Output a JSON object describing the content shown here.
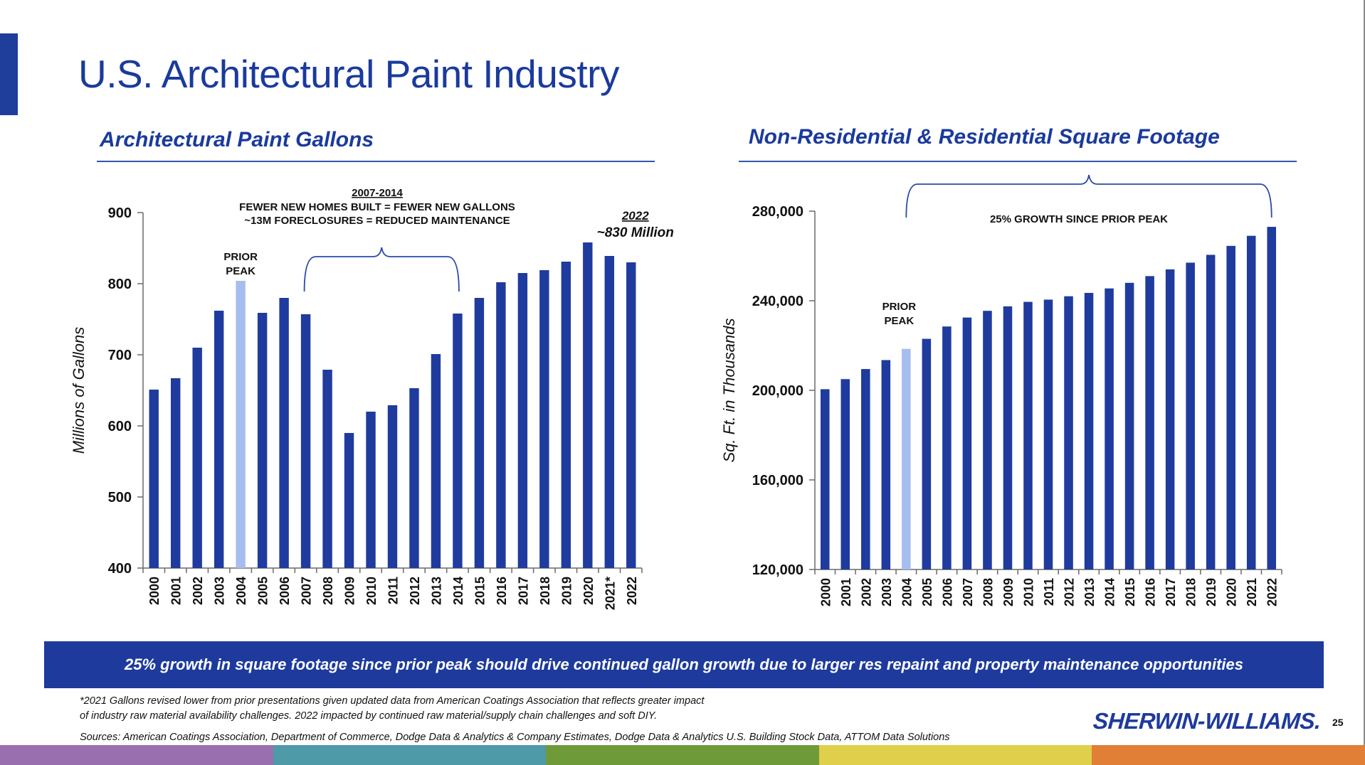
{
  "slide": {
    "title": "U.S. Architectural Paint Industry",
    "page_number": "25",
    "banner": "25% growth in square footage since prior peak should drive continued gallon growth due to larger res repaint and property maintenance opportunities",
    "footnote_line1": "*2021 Gallons revised lower from prior presentations given updated data from American Coatings Association that reflects greater impact",
    "footnote_line2": "of industry raw material availability challenges. 2022 impacted by continued raw material/supply chain challenges and soft DIY.",
    "sources": "Sources:  American Coatings Association, Department of Commerce, Dodge Data & Analytics & Company Estimates, Dodge Data & Analytics U.S. Building Stock Data, ATTOM Data Solutions",
    "logo_text": "SHERWIN-WILLIAMS.",
    "stripe_colors": [
      "#9a6fb0",
      "#4f9aa8",
      "#6f9a3a",
      "#e0cf4a",
      "#e07f35"
    ]
  },
  "colors": {
    "bar": "#1f3b9e",
    "highlight_bar": "#a6bdf0",
    "title_blue": "#1a3a9c"
  },
  "chart_data": [
    {
      "type": "bar",
      "title": "Architectural Paint Gallons",
      "ylabel": "Millions of Gallons",
      "ylim": [
        400,
        900
      ],
      "yticks": [
        "400",
        "500",
        "600",
        "700",
        "800",
        "900"
      ],
      "categories": [
        "2000",
        "2001",
        "2002",
        "2003",
        "2004",
        "2005",
        "2006",
        "2007",
        "2008",
        "2009",
        "2010",
        "2011",
        "2012",
        "2013",
        "2014",
        "2015",
        "2016",
        "2017",
        "2018",
        "2019",
        "2020",
        "2021*",
        "2022"
      ],
      "values": [
        651,
        667,
        710,
        762,
        804,
        759,
        780,
        757,
        679,
        590,
        620,
        629,
        653,
        701,
        758,
        780,
        802,
        815,
        819,
        831,
        858,
        839,
        830
      ],
      "highlight_index": 4,
      "annotations": {
        "prior_peak_1": "PRIOR",
        "prior_peak_2": "PEAK",
        "period_label": "2007-2014",
        "period_line1": "FEWER NEW HOMES BUILT = FEWER NEW GALLONS",
        "period_line2": "~13M FORECLOSURES = REDUCED MAINTENANCE",
        "callout_year": "2022",
        "callout_value": "~830 Million"
      }
    },
    {
      "type": "bar",
      "title": "Non-Residential & Residential Square Footage",
      "ylabel": "Sq. Ft. in Thousands",
      "ylim": [
        120000,
        280000
      ],
      "yticks": [
        "120,000",
        "160,000",
        "200,000",
        "240,000",
        "280,000"
      ],
      "categories": [
        "2000",
        "2001",
        "2002",
        "2003",
        "2004",
        "2005",
        "2006",
        "2007",
        "2008",
        "2009",
        "2010",
        "2011",
        "2012",
        "2013",
        "2014",
        "2015",
        "2016",
        "2017",
        "2018",
        "2019",
        "2020",
        "2021",
        "2022"
      ],
      "values": [
        200500,
        205000,
        209500,
        213500,
        218500,
        223000,
        228500,
        232500,
        235500,
        237500,
        239500,
        240500,
        242000,
        243500,
        245500,
        248000,
        251000,
        254000,
        257000,
        260500,
        264500,
        269000,
        273000
      ],
      "highlight_index": 4,
      "annotations": {
        "prior_peak_1": "PRIOR",
        "prior_peak_2": "PEAK",
        "growth_label": "25% GROWTH SINCE PRIOR PEAK"
      }
    }
  ]
}
